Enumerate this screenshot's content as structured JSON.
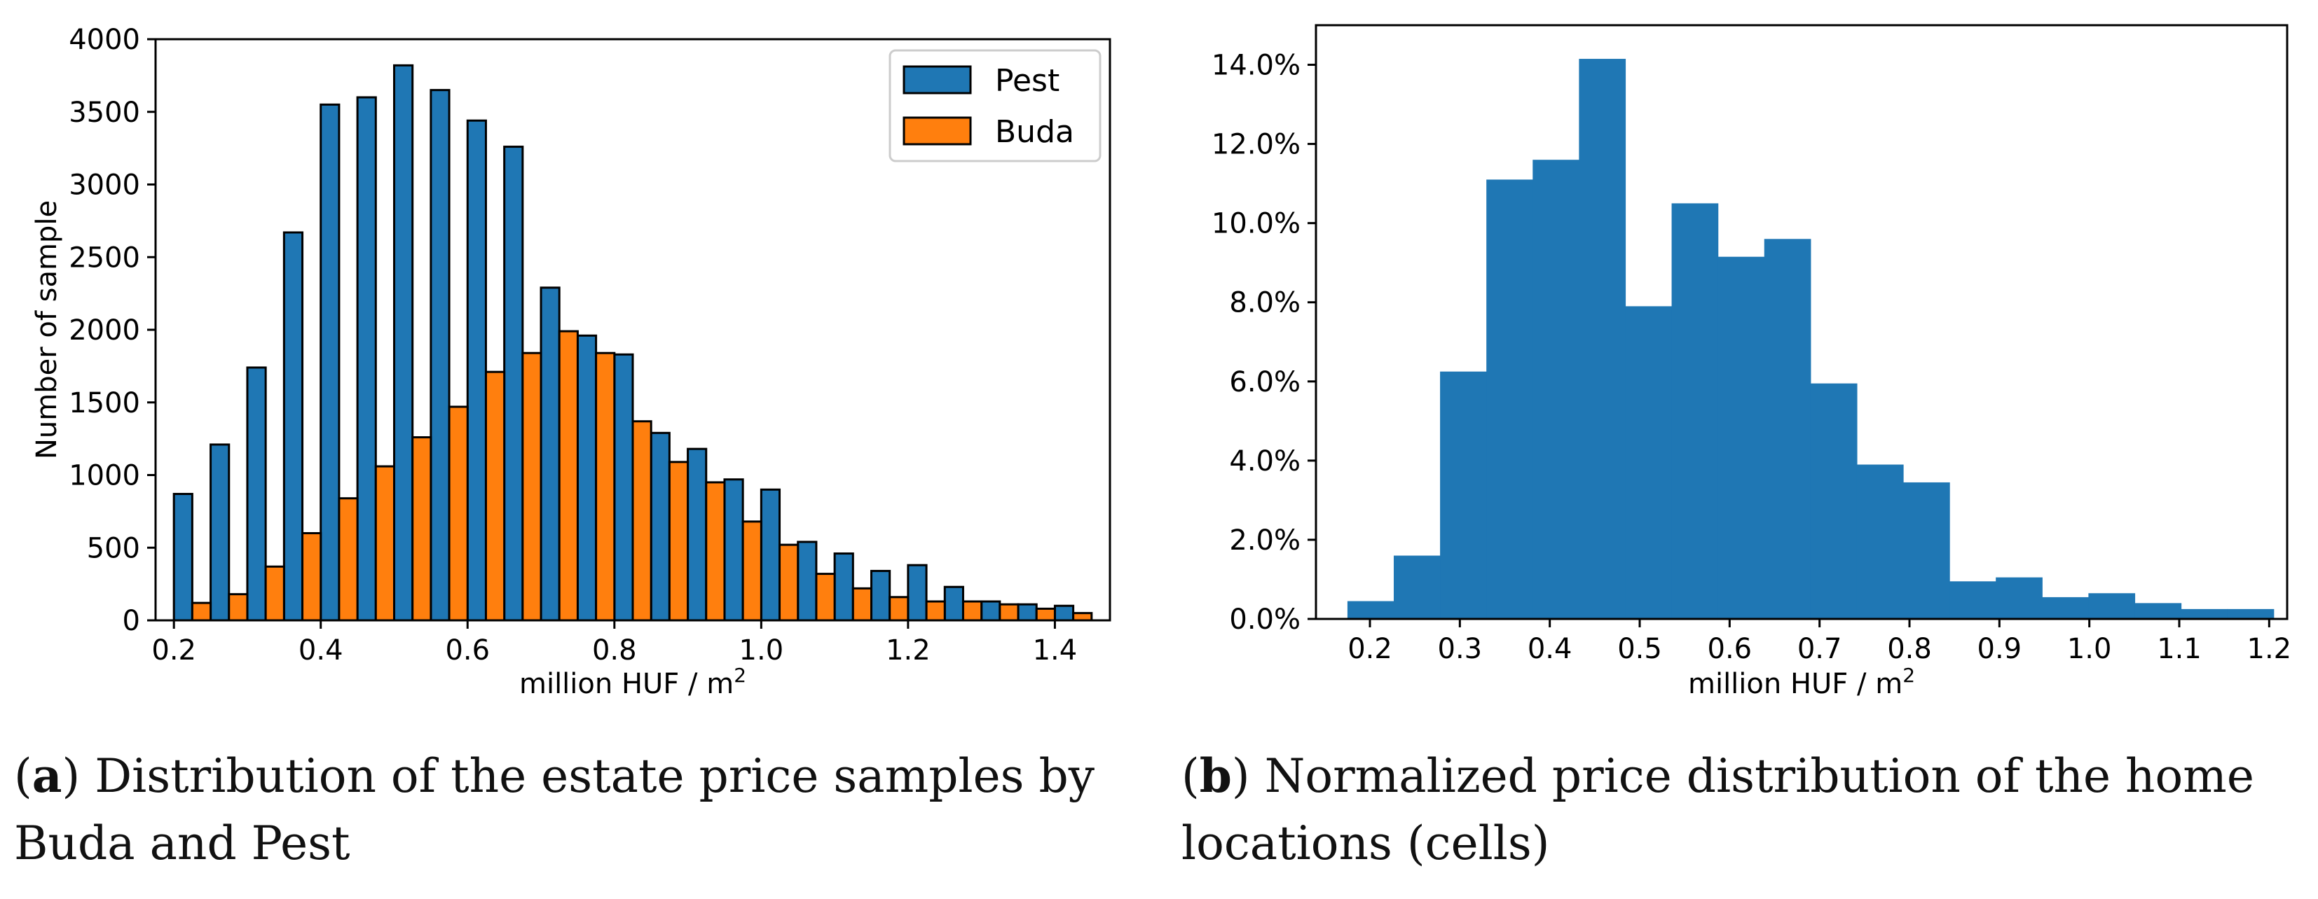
{
  "colors": {
    "pest": "#1f77b4",
    "buda": "#ff7f0e",
    "single": "#1f77b4"
  },
  "chart_data": [
    {
      "type": "bar",
      "panel": "a",
      "xlabel": "million HUF / m",
      "xlabel_sup": "2",
      "ylabel": "Number of sample",
      "xlim": [
        0.175,
        1.475
      ],
      "ylim": [
        0,
        4000
      ],
      "x_ticks": [
        0.2,
        0.4,
        0.6,
        0.8,
        1.0,
        1.2,
        1.4
      ],
      "x_tick_labels": [
        "0.2",
        "0.4",
        "0.6",
        "0.8",
        "1.0",
        "1.2",
        "1.4"
      ],
      "y_ticks": [
        0,
        500,
        1000,
        1500,
        2000,
        2500,
        3000,
        3500,
        4000
      ],
      "y_tick_labels": [
        "0",
        "500",
        "1000",
        "1500",
        "2000",
        "2500",
        "3000",
        "3500",
        "4000"
      ],
      "legend": [
        "Pest",
        "Buda"
      ],
      "bin_width": 0.05,
      "bin_starts": [
        0.2,
        0.25,
        0.3,
        0.35,
        0.4,
        0.45,
        0.5,
        0.55,
        0.6,
        0.65,
        0.7,
        0.75,
        0.8,
        0.85,
        0.9,
        0.95,
        1.0,
        1.05,
        1.1,
        1.15,
        1.2,
        1.25,
        1.3,
        1.35,
        1.4
      ],
      "series": [
        {
          "name": "Pest",
          "values": [
            870,
            1210,
            1740,
            2670,
            3550,
            3600,
            3820,
            3650,
            3440,
            3260,
            2290,
            1960,
            1830,
            1290,
            1180,
            970,
            900,
            540,
            460,
            340,
            380,
            230,
            130,
            110,
            100
          ]
        },
        {
          "name": "Buda",
          "values": [
            120,
            180,
            370,
            600,
            840,
            1060,
            1260,
            1470,
            1710,
            1840,
            1990,
            1840,
            1370,
            1090,
            950,
            680,
            520,
            320,
            220,
            160,
            130,
            130,
            110,
            80,
            50
          ]
        }
      ]
    },
    {
      "type": "bar",
      "panel": "b",
      "xlabel": "million HUF / m",
      "xlabel_sup": "2",
      "ylabel": "",
      "xlim": [
        0.14,
        1.22
      ],
      "ylim": [
        0,
        15
      ],
      "x_ticks": [
        0.2,
        0.3,
        0.4,
        0.5,
        0.6,
        0.7,
        0.8,
        0.9,
        1.0,
        1.1,
        1.2
      ],
      "x_tick_labels": [
        "0.2",
        "0.3",
        "0.4",
        "0.5",
        "0.6",
        "0.7",
        "0.8",
        "0.9",
        "1.0",
        "1.1",
        "1.2"
      ],
      "y_ticks": [
        0,
        2,
        4,
        6,
        8,
        10,
        12,
        14
      ],
      "y_tick_labels": [
        "0.0%",
        "2.0%",
        "4.0%",
        "6.0%",
        "8.0%",
        "10.0%",
        "12.0%",
        "14.0%"
      ],
      "bin_edges": [
        0.175,
        0.2265,
        0.278,
        0.3295,
        0.381,
        0.4325,
        0.484,
        0.5355,
        0.587,
        0.6385,
        0.69,
        0.7415,
        0.793,
        0.8445,
        0.896,
        0.9475,
        0.999,
        1.0505,
        1.102,
        1.1535,
        1.205
      ],
      "values": [
        0.45,
        1.6,
        6.25,
        11.1,
        11.6,
        14.15,
        7.9,
        10.5,
        9.15,
        9.6,
        5.95,
        3.9,
        3.45,
        0.95,
        1.05,
        0.55,
        0.65,
        0.4,
        0.25,
        0.25
      ]
    }
  ],
  "captions": {
    "a": {
      "tag": "a",
      "line1": ") Distribution of the estate price samples by",
      "line2": "Buda and Pest"
    },
    "b": {
      "tag": "b",
      "line1": ") Normalized price distribution of the home",
      "line2": "locations (cells)"
    }
  }
}
